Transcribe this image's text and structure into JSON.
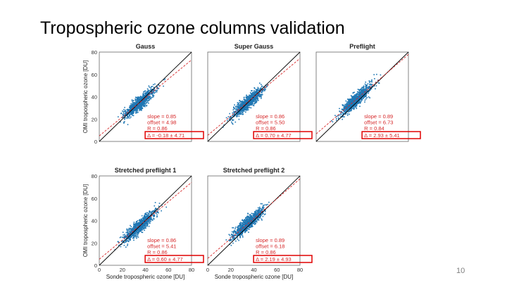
{
  "slide": {
    "title": "Tropospheric ozone columns validation",
    "page_number": "10"
  },
  "colors": {
    "points": "#1f77b4",
    "identity_line": "#000000",
    "fit_line": "#d62728",
    "highlight_box": "#e00000",
    "stats_text": "#d62728"
  },
  "chart_data": [
    {
      "type": "scatter",
      "title": "Gauss",
      "xlabel": "",
      "ylabel": "OMI tropospheric ozone [DU]",
      "xlim": [
        0,
        80
      ],
      "ylim": [
        0,
        80
      ],
      "yticks": [
        "0",
        "20",
        "40",
        "60",
        "80"
      ],
      "xticks": [],
      "stats": {
        "slope": "slope = 0.85",
        "offset": "offset = 4.98",
        "r": "R = 0.86",
        "delta": "Δ = -0.18 ± 4.71"
      },
      "fit": {
        "slope": 0.85,
        "offset": 4.98
      },
      "points_summary": {
        "center": [
          35,
          35
        ],
        "extent": [
          10,
          75
        ]
      }
    },
    {
      "type": "scatter",
      "title": "Super Gauss",
      "xlabel": "",
      "ylabel": "",
      "xlim": [
        0,
        80
      ],
      "ylim": [
        0,
        80
      ],
      "yticks": [],
      "xticks": [],
      "stats": {
        "slope": "slope = 0.86",
        "offset": "offset = 5.50",
        "r": "R = 0.86",
        "delta": "Δ = 0.70 ± 4.77"
      },
      "fit": {
        "slope": 0.86,
        "offset": 5.5
      },
      "points_summary": {
        "center": [
          35,
          36
        ],
        "extent": [
          10,
          75
        ]
      }
    },
    {
      "type": "scatter",
      "title": "Preflight",
      "xlabel": "",
      "ylabel": "",
      "xlim": [
        0,
        80
      ],
      "ylim": [
        0,
        80
      ],
      "yticks": [],
      "xticks": [],
      "stats": {
        "slope": "slope = 0.89",
        "offset": "offset = 6.73",
        "r": "R = 0.84",
        "delta": "Δ = 2.93 ± 5.41"
      },
      "fit": {
        "slope": 0.89,
        "offset": 6.73
      },
      "points_summary": {
        "center": [
          35,
          38
        ],
        "extent": [
          10,
          75
        ]
      }
    },
    {
      "type": "scatter",
      "title": "Stretched preflight 1",
      "xlabel": "Sonde tropospheric ozone [DU]",
      "ylabel": "OMI tropospheric ozone [DU]",
      "xlim": [
        0,
        80
      ],
      "ylim": [
        0,
        80
      ],
      "yticks": [
        "0",
        "20",
        "40",
        "60",
        "80"
      ],
      "xticks": [
        "0",
        "20",
        "40",
        "60",
        "80"
      ],
      "stats": {
        "slope": "slope = 0.86",
        "offset": "offset = 5.41",
        "r": "R = 0.86",
        "delta": "Δ = 0.60 ± 4.77"
      },
      "fit": {
        "slope": 0.86,
        "offset": 5.41
      },
      "points_summary": {
        "center": [
          35,
          36
        ],
        "extent": [
          10,
          75
        ]
      }
    },
    {
      "type": "scatter",
      "title": "Stretched preflight 2",
      "xlabel": "Sonde tropospheric ozone [DU]",
      "ylabel": "",
      "xlim": [
        0,
        80
      ],
      "ylim": [
        0,
        80
      ],
      "yticks": [],
      "xticks": [
        "0",
        "20",
        "40",
        "60",
        "80"
      ],
      "stats": {
        "slope": "slope = 0.89",
        "offset": "offset = 6.18",
        "r": "R = 0.86",
        "delta": "Δ = 2.19 ± 4.93"
      },
      "fit": {
        "slope": 0.89,
        "offset": 6.18
      },
      "points_summary": {
        "center": [
          35,
          37
        ],
        "extent": [
          10,
          75
        ]
      }
    }
  ]
}
